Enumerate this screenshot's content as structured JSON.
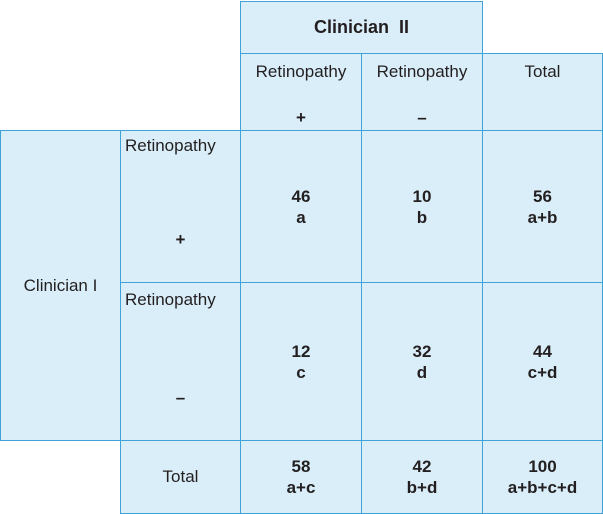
{
  "header": {
    "title": "Clinician  II"
  },
  "columns": [
    {
      "label": "Retinopathy",
      "sign": "+"
    },
    {
      "label": "Retinopathy",
      "sign": "–"
    },
    {
      "label": "Total"
    }
  ],
  "row_group": {
    "label": "Clinician I"
  },
  "rows": [
    {
      "label": "Retinopathy",
      "sign": "+",
      "cells": [
        {
          "value": "46",
          "formula": "a"
        },
        {
          "value": "10",
          "formula": "b"
        },
        {
          "value": "56",
          "formula": "a+b"
        }
      ]
    },
    {
      "label": "Retinopathy",
      "sign": "–",
      "cells": [
        {
          "value": "12",
          "formula": "c"
        },
        {
          "value": "32",
          "formula": "d"
        },
        {
          "value": "44",
          "formula": "c+d"
        }
      ]
    }
  ],
  "totals": {
    "label": "Total",
    "cells": [
      {
        "value": "58",
        "formula": "a+c"
      },
      {
        "value": "42",
        "formula": "b+d"
      },
      {
        "value": "100",
        "formula": "a+b+c+d"
      }
    ]
  }
}
